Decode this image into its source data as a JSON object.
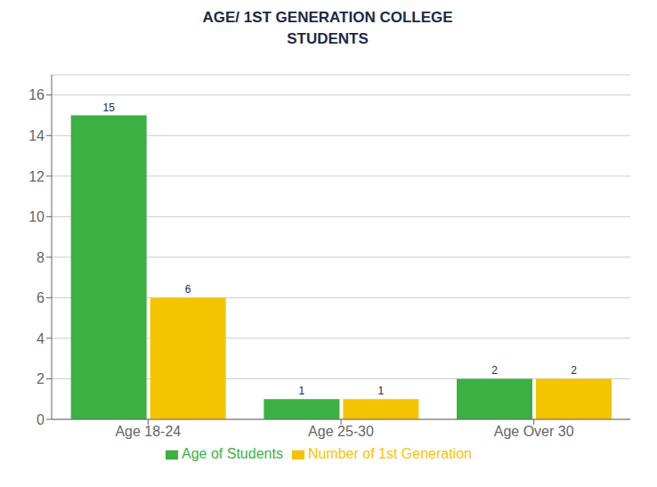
{
  "chart_data": {
    "type": "bar",
    "title": "AGE/ 1ST GENERATION COLLEGE\nSTUDENTS",
    "categories": [
      "Age 18-24",
      "Age 25-30",
      "Age Over 30"
    ],
    "series": [
      {
        "name": "Age of Students",
        "color": "#3cb043",
        "values": [
          15,
          1,
          2
        ]
      },
      {
        "name": "Number of 1st Generation",
        "color": "#f5c400",
        "values": [
          6,
          1,
          2
        ]
      }
    ],
    "ylim": [
      0,
      17
    ],
    "yticks": [
      0,
      2,
      4,
      6,
      8,
      10,
      12,
      14,
      16
    ],
    "grid": true,
    "legend": "bottom",
    "data_labels": true
  }
}
